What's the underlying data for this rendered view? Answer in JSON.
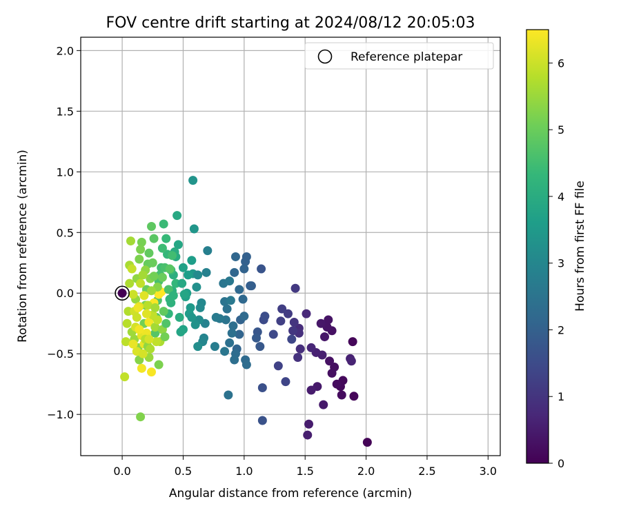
{
  "chart_data": {
    "type": "scatter",
    "title": "FOV centre drift starting at 2024/08/12 20:05:03",
    "xlabel": "Angular distance from reference (arcmin)",
    "ylabel": "Rotation from reference (arcmin)",
    "xlim": [
      -0.34,
      3.1
    ],
    "ylim": [
      -1.34,
      2.11
    ],
    "xticks": [
      "0.0",
      "0.5",
      "1.0",
      "1.5",
      "2.0",
      "2.5",
      "3.0"
    ],
    "yticks": [
      "−1.0",
      "−0.5",
      "0.0",
      "0.5",
      "1.0",
      "1.5",
      "2.0"
    ],
    "grid": true,
    "legend": {
      "position": "top-right",
      "entries": [
        "Reference platepar"
      ]
    },
    "reference_point": {
      "x": 0.0,
      "y": 0.0,
      "label": "Reference platepar"
    },
    "colorbar": {
      "label": "Hours from first FF file",
      "min": 0,
      "max": 6.5,
      "ticks": [
        "0",
        "1",
        "2",
        "3",
        "4",
        "5",
        "6"
      ],
      "colormap": "viridis"
    },
    "colormap_stops": [
      "#440154",
      "#482878",
      "#3e4989",
      "#31688e",
      "#26828e",
      "#1f9e89",
      "#35b779",
      "#6ece58",
      "#b5de2b",
      "#fde725"
    ],
    "points": [
      [
        2.01,
        -1.23,
        0.05
      ],
      [
        1.89,
        -0.4,
        0.1
      ],
      [
        1.9,
        -0.85,
        0.1
      ],
      [
        1.81,
        -0.72,
        0.15
      ],
      [
        1.79,
        -0.77,
        0.15
      ],
      [
        1.8,
        -0.84,
        0.2
      ],
      [
        1.76,
        -0.75,
        0.2
      ],
      [
        1.74,
        -0.61,
        0.25
      ],
      [
        1.72,
        -0.66,
        0.25
      ],
      [
        1.7,
        -0.56,
        0.3
      ],
      [
        1.72,
        -0.31,
        0.3
      ],
      [
        1.69,
        -0.22,
        0.35
      ],
      [
        1.68,
        -0.28,
        0.35
      ],
      [
        1.66,
        -0.36,
        0.4
      ],
      [
        1.63,
        -0.25,
        0.4
      ],
      [
        1.65,
        -0.92,
        0.45
      ],
      [
        1.6,
        -0.77,
        0.45
      ],
      [
        1.55,
        -0.8,
        0.5
      ],
      [
        1.53,
        -1.08,
        0.5
      ],
      [
        1.52,
        -1.17,
        0.55
      ],
      [
        1.64,
        -0.51,
        0.55
      ],
      [
        1.59,
        -0.49,
        0.6
      ],
      [
        1.87,
        -0.54,
        0.6
      ],
      [
        1.88,
        -0.56,
        0.65
      ],
      [
        1.55,
        -0.45,
        0.7
      ],
      [
        1.51,
        -0.17,
        0.75
      ],
      [
        1.45,
        -0.29,
        0.8
      ],
      [
        1.46,
        -0.46,
        0.85
      ],
      [
        1.45,
        -0.33,
        0.9
      ],
      [
        1.44,
        -0.53,
        0.95
      ],
      [
        1.41,
        -0.24,
        1.0
      ],
      [
        1.4,
        -0.31,
        1.05
      ],
      [
        1.42,
        0.04,
        1.1
      ],
      [
        1.36,
        -0.17,
        1.15
      ],
      [
        1.31,
        -0.13,
        1.2
      ],
      [
        1.3,
        -0.23,
        1.25
      ],
      [
        1.28,
        -0.6,
        1.3
      ],
      [
        1.34,
        -0.73,
        1.35
      ],
      [
        1.39,
        -0.38,
        1.4
      ],
      [
        1.24,
        -0.34,
        1.45
      ],
      [
        1.16,
        -0.22,
        1.5
      ],
      [
        1.17,
        -0.19,
        1.55
      ],
      [
        1.15,
        -0.78,
        1.6
      ],
      [
        1.15,
        -1.05,
        1.65
      ],
      [
        1.14,
        0.2,
        1.7
      ],
      [
        1.11,
        -0.32,
        1.75
      ],
      [
        1.13,
        -0.44,
        1.8
      ],
      [
        1.1,
        -0.37,
        1.85
      ],
      [
        1.06,
        0.06,
        1.9
      ],
      [
        1.05,
        0.06,
        1.95
      ],
      [
        1.02,
        0.3,
        2.0
      ],
      [
        1.01,
        0.26,
        2.0
      ],
      [
        1.0,
        0.2,
        2.05
      ],
      [
        0.97,
        -0.22,
        2.05
      ],
      [
        0.96,
        -0.34,
        2.1
      ],
      [
        0.94,
        -0.46,
        2.1
      ],
      [
        0.93,
        0.3,
        2.15
      ],
      [
        0.92,
        0.17,
        2.15
      ],
      [
        0.96,
        0.03,
        2.2
      ],
      [
        0.99,
        -0.05,
        2.2
      ],
      [
        1.0,
        -0.19,
        2.25
      ],
      [
        1.01,
        -0.55,
        2.25
      ],
      [
        1.02,
        -0.59,
        2.3
      ],
      [
        0.93,
        -0.5,
        2.3
      ],
      [
        0.92,
        -0.55,
        2.35
      ],
      [
        0.91,
        -0.27,
        2.35
      ],
      [
        0.9,
        -0.33,
        2.4
      ],
      [
        0.88,
        -0.41,
        2.4
      ],
      [
        0.87,
        -0.84,
        2.45
      ],
      [
        0.86,
        -0.13,
        2.45
      ],
      [
        0.85,
        -0.22,
        2.5
      ],
      [
        0.84,
        -0.07,
        2.5
      ],
      [
        0.84,
        -0.48,
        2.55
      ],
      [
        0.83,
        0.08,
        2.55
      ],
      [
        0.8,
        -0.21,
        2.6
      ],
      [
        0.88,
        0.1,
        2.6
      ],
      [
        0.89,
        -0.06,
        2.65
      ],
      [
        0.77,
        -0.2,
        2.7
      ],
      [
        0.76,
        -0.44,
        2.75
      ],
      [
        0.7,
        0.35,
        2.8
      ],
      [
        0.69,
        0.17,
        2.85
      ],
      [
        0.68,
        -0.25,
        2.9
      ],
      [
        0.67,
        -0.37,
        2.95
      ],
      [
        0.66,
        -0.4,
        3.0
      ],
      [
        0.65,
        -0.08,
        3.05
      ],
      [
        0.64,
        -0.12,
        3.1
      ],
      [
        0.63,
        -0.22,
        3.15
      ],
      [
        0.62,
        -0.44,
        3.2
      ],
      [
        0.61,
        0.05,
        3.25
      ],
      [
        0.6,
        -0.26,
        3.3
      ],
      [
        0.58,
        0.93,
        3.35
      ],
      [
        0.59,
        0.53,
        3.4
      ],
      [
        0.58,
        0.16,
        3.45
      ],
      [
        0.56,
        -0.12,
        3.5
      ],
      [
        0.55,
        -0.17,
        3.55
      ],
      [
        0.54,
        0.15,
        3.6
      ],
      [
        0.53,
        0.0,
        3.65
      ],
      [
        0.52,
        -0.03,
        3.7
      ],
      [
        0.5,
        -0.3,
        3.75
      ],
      [
        0.48,
        -0.32,
        3.8
      ],
      [
        0.46,
        0.4,
        3.85
      ],
      [
        0.45,
        0.64,
        3.9
      ],
      [
        0.44,
        0.3,
        3.95
      ],
      [
        0.43,
        0.34,
        4.0
      ],
      [
        0.42,
        0.15,
        4.05
      ],
      [
        0.41,
        0.02,
        4.1
      ],
      [
        0.4,
        -0.08,
        4.15
      ],
      [
        0.39,
        -0.05,
        4.2
      ],
      [
        0.38,
        -0.17,
        4.25
      ],
      [
        0.37,
        0.32,
        4.3
      ],
      [
        0.36,
        0.45,
        4.35
      ],
      [
        0.34,
        0.57,
        4.4
      ],
      [
        0.33,
        0.37,
        4.45
      ],
      [
        0.32,
        0.21,
        4.5
      ],
      [
        0.31,
        0.15,
        4.55
      ],
      [
        0.3,
        0.1,
        4.6
      ],
      [
        0.29,
        -0.06,
        4.65
      ],
      [
        0.28,
        -0.2,
        4.7
      ],
      [
        0.27,
        -0.33,
        4.75
      ],
      [
        0.26,
        0.45,
        4.8
      ],
      [
        0.24,
        0.55,
        4.85
      ],
      [
        0.22,
        0.33,
        4.9
      ],
      [
        0.21,
        0.24,
        4.95
      ],
      [
        0.2,
        0.03,
        5.0
      ],
      [
        0.19,
        -0.1,
        5.05
      ],
      [
        0.18,
        -0.25,
        5.1
      ],
      [
        0.16,
        0.42,
        5.15
      ],
      [
        0.15,
        0.36,
        5.2
      ],
      [
        0.15,
        -1.02,
        5.25
      ],
      [
        0.14,
        -0.55,
        5.3
      ],
      [
        0.13,
        -0.45,
        5.35
      ],
      [
        0.12,
        0.12,
        5.4
      ],
      [
        0.11,
        -0.05,
        5.45
      ],
      [
        0.1,
        -0.38,
        5.5
      ],
      [
        0.08,
        -0.32,
        5.55
      ],
      [
        0.07,
        0.43,
        5.6
      ],
      [
        0.06,
        0.23,
        5.65
      ],
      [
        0.06,
        0.08,
        5.7
      ],
      [
        0.05,
        -0.15,
        5.75
      ],
      [
        0.04,
        -0.25,
        5.8
      ],
      [
        0.03,
        -0.4,
        5.85
      ],
      [
        0.02,
        -0.69,
        5.9
      ],
      [
        0.08,
        0.2,
        5.95
      ],
      [
        0.09,
        -0.01,
        6.0
      ],
      [
        0.1,
        -0.15,
        6.05
      ],
      [
        0.11,
        -0.28,
        6.1
      ],
      [
        0.12,
        -0.48,
        6.15
      ],
      [
        0.14,
        -0.11,
        6.2
      ],
      [
        0.16,
        -0.35,
        6.25
      ],
      [
        0.18,
        -0.42,
        6.3
      ],
      [
        0.2,
        -0.33,
        6.35
      ],
      [
        0.22,
        -0.24,
        6.4
      ],
      [
        0.24,
        -0.65,
        6.45
      ],
      [
        0.26,
        -0.08,
        6.45
      ],
      [
        0.3,
        -0.01,
        6.5
      ],
      [
        0.32,
        0.01,
        6.5
      ],
      [
        0.16,
        -0.62,
        6.4
      ],
      [
        0.13,
        -0.12,
        6.35
      ],
      [
        0.25,
        -0.18,
        5.9
      ],
      [
        0.27,
        -0.28,
        5.6
      ],
      [
        0.29,
        0.05,
        5.3
      ],
      [
        0.31,
        -0.4,
        5.7
      ],
      [
        0.33,
        -0.3,
        5.4
      ],
      [
        0.35,
        -0.36,
        5.1
      ],
      [
        0.3,
        -0.59,
        5.2
      ],
      [
        0.22,
        -0.53,
        5.5
      ],
      [
        0.18,
        -0.02,
        6.2
      ],
      [
        0.21,
        -0.1,
        5.8
      ],
      [
        0.23,
        0.12,
        5.3
      ],
      [
        0.25,
        0.25,
        5.0
      ],
      [
        0.27,
        -0.12,
        5.6
      ],
      [
        0.29,
        -0.22,
        5.9
      ],
      [
        0.34,
        -0.15,
        4.9
      ],
      [
        0.36,
        -0.25,
        4.7
      ],
      [
        0.38,
        0.03,
        4.6
      ],
      [
        0.4,
        0.19,
        4.4
      ],
      [
        0.42,
        -0.02,
        4.2
      ],
      [
        0.44,
        0.08,
        4.3
      ],
      [
        0.47,
        -0.2,
        4.0
      ],
      [
        0.49,
        0.08,
        3.9
      ],
      [
        0.51,
        -0.01,
        3.8
      ],
      [
        0.57,
        0.27,
        3.6
      ],
      [
        0.62,
        0.15,
        3.1
      ],
      [
        0.57,
        -0.2,
        3.4
      ],
      [
        0.5,
        0.21,
        3.7
      ],
      [
        0.35,
        0.21,
        4.6
      ],
      [
        0.39,
        0.2,
        4.8
      ],
      [
        0.41,
        0.31,
        4.5
      ],
      [
        0.33,
        0.13,
        5.0
      ],
      [
        0.15,
        0.08,
        5.9
      ],
      [
        0.14,
        0.28,
        5.2
      ],
      [
        0.12,
        -0.2,
        6.0
      ],
      [
        0.09,
        -0.42,
        6.3
      ],
      [
        0.17,
        -0.5,
        6.1
      ],
      [
        0.19,
        -0.38,
        5.8
      ],
      [
        0.21,
        -0.44,
        5.4
      ],
      [
        0.23,
        -0.46,
        5.7
      ],
      [
        0.19,
        0.19,
        5.4
      ],
      [
        0.17,
        0.15,
        5.6
      ],
      [
        0.24,
        0.02,
        5.5
      ],
      [
        0.26,
        0.14,
        5.1
      ],
      [
        0.28,
        -0.4,
        5.9
      ],
      [
        0.2,
        -0.17,
        6.2
      ],
      [
        0.14,
        -0.3,
        6.4
      ],
      [
        0.22,
        -0.38,
        6.1
      ]
    ]
  }
}
